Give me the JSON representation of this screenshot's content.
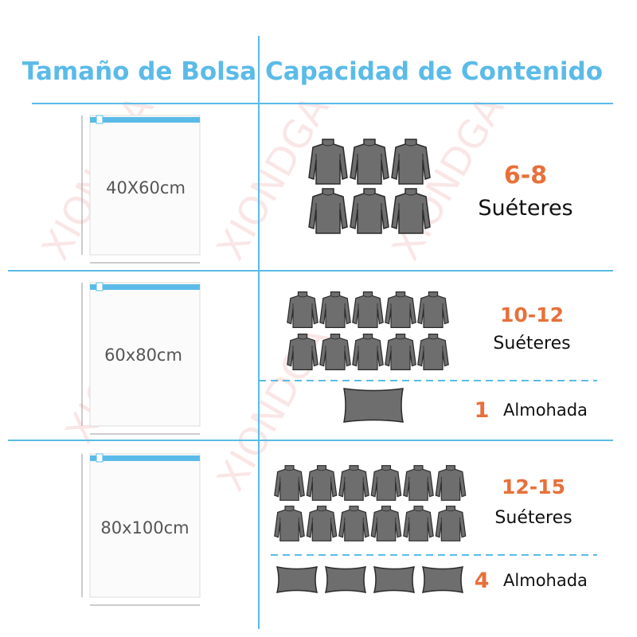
{
  "header": {
    "left": "Tamaño de Bolsa",
    "right": "Capacidad de Contenido"
  },
  "watermark": "XIONDGA",
  "rows": [
    {
      "size": "40X60cm",
      "sweater_count": "6-8",
      "sweater_label": "Suéteres"
    },
    {
      "size": "60x80cm",
      "sweater_count": "10-12",
      "sweater_label": "Suéteres",
      "pillow_count": "1",
      "pillow_label": "Almohada"
    },
    {
      "size": "80x100cm",
      "sweater_count": "12-15",
      "sweater_label": "Suéteres",
      "pillow_count": "4",
      "pillow_label": "Almohada"
    }
  ]
}
